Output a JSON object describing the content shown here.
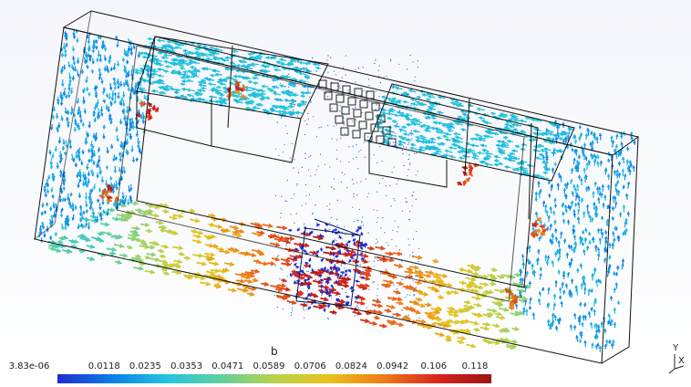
{
  "legend": {
    "title": "b",
    "ticks": [
      "3.83e-06",
      "0.0118",
      "0.0235",
      "0.0353",
      "0.0471",
      "0.0589",
      "0.0706",
      "0.0824",
      "0.0942",
      "0.106",
      "0.118"
    ]
  },
  "colormap": [
    "#1f2bd1",
    "#0a7fe8",
    "#22c4e0",
    "#5fd0a0",
    "#b9d24a",
    "#e8c21d",
    "#ef7b16",
    "#d7261c",
    "#9b1313"
  ],
  "axes": {
    "y": "Y",
    "x": "X"
  }
}
